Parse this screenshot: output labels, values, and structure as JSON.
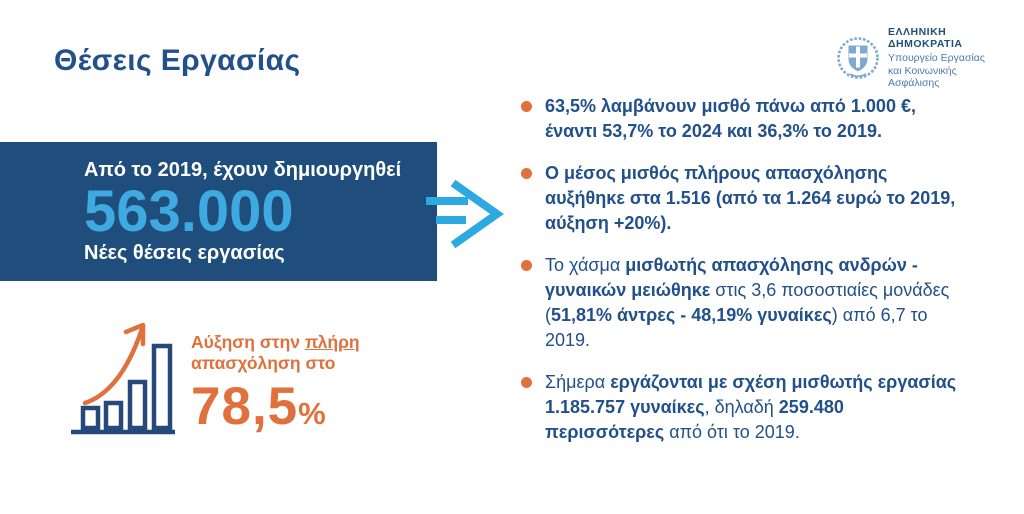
{
  "page_title": "Θέσεις Εργασίας",
  "logo": {
    "line1": "ΕΛΛΗΝΙΚΗ ΔΗΜΟΚΡΑΤΙΑ",
    "line2": "Υπουργείο Εργασίας",
    "line3": "και Κοινωνικής Ασφάλισης"
  },
  "highlight_box": {
    "intro": "Από το 2019, έχουν δημιουργηθεί",
    "big_number": "563.000",
    "caption": "Νέες θέσεις εργασίας"
  },
  "bullets": [
    {
      "segments": [
        {
          "text": "63,5% λαμβάνουν μισθό πάνω από 1.000 €, έναντι 53,7% το 2024 και 36,3% το 2019.",
          "bold": true
        }
      ]
    },
    {
      "segments": [
        {
          "text": "Ο μέσος μισθός πλήρους απασχόλησης αυξήθηκε στα 1.516 (από τα 1.264 ευρώ το 2019, αύξηση +20%).",
          "bold": true
        }
      ]
    },
    {
      "segments": [
        {
          "text": "Το χάσμα ",
          "bold": false
        },
        {
          "text": "μισθωτής απασχόλησης ανδρών - γυναικών μειώθηκε",
          "bold": true
        },
        {
          "text": " στις 3,6 ποσοστιαίες μονάδες (",
          "bold": false
        },
        {
          "text": "51,81% άντρες - 48,19% γυναίκες",
          "bold": true
        },
        {
          "text": ") από 6,7 το 2019.",
          "bold": false
        }
      ]
    },
    {
      "segments": [
        {
          "text": "Σήμερα ",
          "bold": false
        },
        {
          "text": "εργάζονται με σχέση μισθωτής εργασίας 1.185.757 γυναίκες",
          "bold": true
        },
        {
          "text": ", δηλαδή ",
          "bold": false
        },
        {
          "text": "259.480 περισσότερες",
          "bold": true
        },
        {
          "text": " από ότι το 2019.",
          "bold": false
        }
      ]
    }
  ],
  "full_employment": {
    "label_part1": "Αύξηση στην ",
    "label_underlined": "πλήρη",
    "label_part2": "απασχόληση στο",
    "value": "78,5",
    "unit": "%"
  },
  "icons": {
    "emblem": "greek-coat-of-arms",
    "arrow": "fast-forward-right-arrow",
    "growth": "rising-bar-chart-with-arrow",
    "bullet": "orange-dot"
  },
  "colors": {
    "title_blue": "#21508a",
    "box_blue": "#1f4e7c",
    "light_blue": "#3fa9e1",
    "arrow_blue": "#2da9e1",
    "orange": "#e0703c",
    "bar_navy": "#27497a",
    "logo_blue": "#1f4e79",
    "logo_subtext_blue": "#4d7aaa",
    "emblem_blue": "#7ea9d0"
  }
}
